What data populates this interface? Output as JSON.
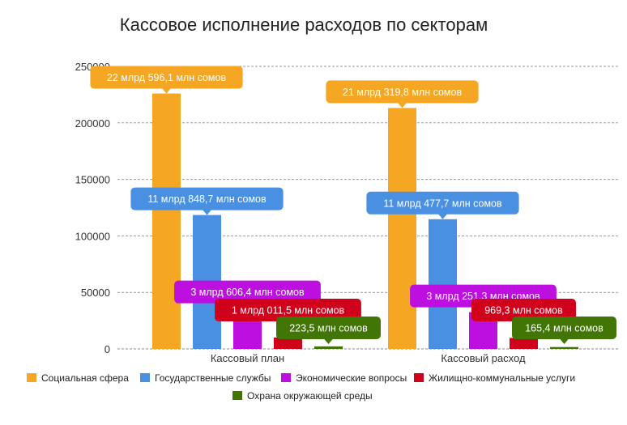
{
  "chart_data": {
    "type": "bar",
    "title": "Кассовое исполнение расходов по секторам",
    "categories": [
      "Кассовый план",
      "Кассовый расход"
    ],
    "ylim": [
      0,
      250000
    ],
    "yticks": [
      "0",
      "50000",
      "100000",
      "150000",
      "200000",
      "250000"
    ],
    "grid": true,
    "legend_position": "bottom",
    "series": [
      {
        "name": "Социальная сфера",
        "color": "#f5a623",
        "values": [
          225963,
          213198
        ],
        "labels": [
          "22 млрд 596,1 млн сомов",
          "21 млрд 319,8 млн сомов"
        ]
      },
      {
        "name": "Государственные службы",
        "color": "#4a90e2",
        "values": [
          118487,
          114777
        ],
        "labels": [
          "11 млрд 848,7 млн сомов",
          "11 млрд 477,7 млн сомов"
        ]
      },
      {
        "name": "Экономические вопросы",
        "color": "#bd10e0",
        "values": [
          36064,
          32513
        ],
        "labels": [
          "3 млрд 606,4 млн сомов",
          "3 млрд 251,3 млн сомов"
        ]
      },
      {
        "name": "Жилищно-коммунальные услуги",
        "color": "#d0021b",
        "values": [
          10115,
          9693
        ],
        "labels": [
          "1 млрд 011,5 млн сомов",
          "969,3 млн сомов"
        ]
      },
      {
        "name": "Охрана окружающей среды",
        "color": "#417505",
        "values": [
          2235,
          1654
        ],
        "labels": [
          "223,5 млн сомов",
          "165,4 млн сомов"
        ]
      }
    ]
  }
}
